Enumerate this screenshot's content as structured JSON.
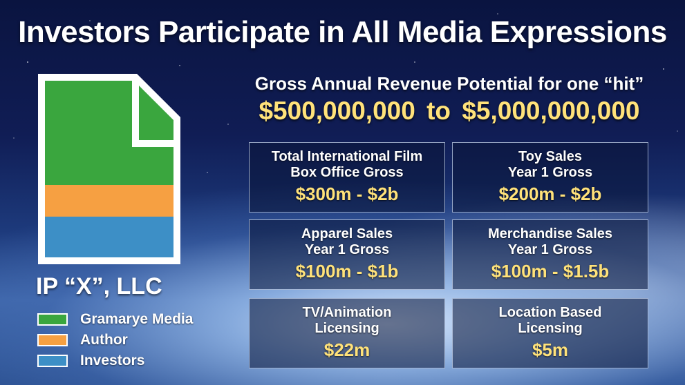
{
  "title": "Investors Participate in All Media Expressions",
  "subtitle": "Gross Annual Revenue Potential for one “hit”",
  "range": {
    "low": "$500,000,000",
    "connector": "to",
    "high": "$5,000,000,000"
  },
  "ownership": {
    "company": "IP “X”, LLC",
    "legend": [
      {
        "label": "Gramarye Media",
        "color": "#3aa63e"
      },
      {
        "label": "Author",
        "color": "#f6a042"
      },
      {
        "label": "Investors",
        "color": "#3d8fc6"
      }
    ]
  },
  "cards": [
    {
      "line1": "Total International Film",
      "line2": "Box Office Gross",
      "value": "$300m - $2b"
    },
    {
      "line1": "Toy Sales",
      "line2": "Year 1 Gross",
      "value": "$200m - $2b"
    },
    {
      "line1": "Apparel Sales",
      "line2": "Year 1 Gross",
      "value": "$100m - $1b"
    },
    {
      "line1": "Merchandise Sales",
      "line2": "Year 1 Gross",
      "value": "$100m - $1.5b"
    },
    {
      "line1": "TV/Animation",
      "line2": "Licensing",
      "value": "$22m"
    },
    {
      "line1": "Location Based",
      "line2": "Licensing",
      "value": "$5m"
    }
  ]
}
